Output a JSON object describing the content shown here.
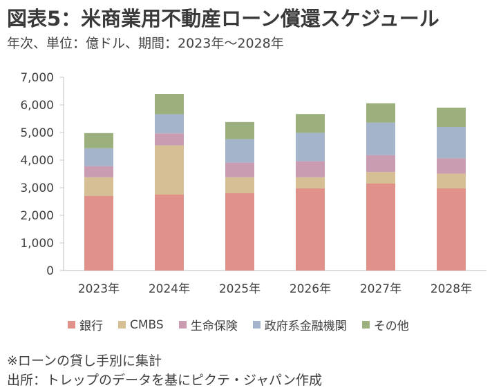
{
  "title": "図表5：米商業用不動産ローン償還スケジュール",
  "subtitle": "年次、単位：億ドル、期間：2023年～2028年",
  "notes": [
    "※ローンの貸し手別に集計",
    "出所：トレップのデータを基にピクテ・ジャパン作成"
  ],
  "chart_data": {
    "type": "bar",
    "stacked": true,
    "categories": [
      "2023年",
      "2024年",
      "2025年",
      "2026年",
      "2027年",
      "2028年"
    ],
    "ylim": [
      0,
      7000
    ],
    "yticks": [
      "0",
      "1,000",
      "2,000",
      "3,000",
      "4,000",
      "5,000",
      "6,000",
      "7,000"
    ],
    "ytick_values": [
      0,
      1000,
      2000,
      3000,
      4000,
      5000,
      6000,
      7000
    ],
    "grid": false,
    "legend_position": "bottom",
    "series": [
      {
        "name": "銀行",
        "color": "#e0918a",
        "values": [
          2700,
          2750,
          2800,
          2980,
          3150,
          2980
        ]
      },
      {
        "name": "CMBS",
        "color": "#d7bf95",
        "values": [
          680,
          1780,
          580,
          400,
          420,
          530
        ]
      },
      {
        "name": "生命保険",
        "color": "#c99cb2",
        "values": [
          400,
          440,
          530,
          580,
          610,
          560
        ]
      },
      {
        "name": "政府系金融機関",
        "color": "#a3b4cb",
        "values": [
          650,
          690,
          850,
          1030,
          1180,
          1130
        ]
      },
      {
        "name": "その他",
        "color": "#9bb07c",
        "values": [
          550,
          740,
          620,
          680,
          700,
          700
        ]
      }
    ]
  }
}
